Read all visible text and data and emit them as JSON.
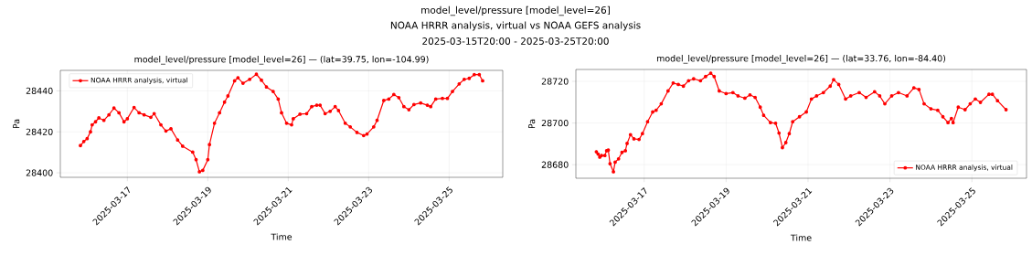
{
  "chart_data": [
    {
      "type": "line",
      "title": "model_level/pressure [model_level=26] — (lat=39.75, lon=-104.99)",
      "xlabel": "Time",
      "ylabel": "Pa",
      "annotations": [
        "model_level/pressure [model_level=26]",
        "NOAA HRRR analysis, virtual vs NOAA GEFS analysis",
        "2025-03-15T20:00 - 2025-03-25T20:00"
      ],
      "x": [
        "2025-03-15T20:00",
        "2025-03-15T22:00",
        "2025-03-16T00:00",
        "2025-03-16T02:00",
        "2025-03-16T03:00",
        "2025-03-16T05:00",
        "2025-03-16T07:00",
        "2025-03-16T10:00",
        "2025-03-16T13:00",
        "2025-03-16T16:00",
        "2025-03-16T19:00",
        "2025-03-16T22:00",
        "2025-03-17T00:00",
        "2025-03-17T04:00",
        "2025-03-17T07:00",
        "2025-03-17T10:00",
        "2025-03-17T14:00",
        "2025-03-17T16:00",
        "2025-03-17T20:00",
        "2025-03-17T23:00",
        "2025-03-18T02:00",
        "2025-03-18T06:00",
        "2025-03-18T09:00",
        "2025-03-18T15:00",
        "2025-03-18T17:00",
        "2025-03-18T19:00",
        "2025-03-18T21:00",
        "2025-03-19T00:00",
        "2025-03-19T01:00",
        "2025-03-19T04:00",
        "2025-03-19T07:00",
        "2025-03-19T10:00",
        "2025-03-19T12:00",
        "2025-03-19T16:00",
        "2025-03-19T18:00",
        "2025-03-19T21:00",
        "2025-03-20T01:00",
        "2025-03-20T05:00",
        "2025-03-20T08:00",
        "2025-03-20T11:00",
        "2025-03-20T15:00",
        "2025-03-20T18:00",
        "2025-03-20T20:00",
        "2025-03-20T23:00",
        "2025-03-21T02:00",
        "2025-03-21T03:00",
        "2025-03-21T07:00",
        "2025-03-21T11:00",
        "2025-03-21T14:00",
        "2025-03-21T17:00",
        "2025-03-21T19:00",
        "2025-03-21T22:00",
        "2025-03-22T01:00",
        "2025-03-22T04:00",
        "2025-03-22T06:00",
        "2025-03-22T10:00",
        "2025-03-22T13:00",
        "2025-03-22T17:00",
        "2025-03-22T21:00",
        "2025-03-22T23:00",
        "2025-03-23T03:00",
        "2025-03-23T05:00",
        "2025-03-23T09:00",
        "2025-03-23T12:00",
        "2025-03-23T15:00",
        "2025-03-23T18:00",
        "2025-03-23T21:00",
        "2025-03-24T00:00",
        "2025-03-24T03:00",
        "2025-03-24T07:00",
        "2025-03-24T11:00",
        "2025-03-24T13:00",
        "2025-03-24T16:00",
        "2025-03-24T20:00",
        "2025-03-24T23:00",
        "2025-03-25T02:00",
        "2025-03-25T06:00",
        "2025-03-25T09:00",
        "2025-03-25T12:00",
        "2025-03-25T15:00",
        "2025-03-25T18:00",
        "2025-03-25T20:00"
      ],
      "series": [
        {
          "name": "NOAA HRRR analysis, virtual",
          "color": "#ff0000",
          "values": [
            28413.3,
            28415.3,
            28416.7,
            28420.0,
            28423.4,
            28424.9,
            28426.8,
            28425.6,
            28428.3,
            28431.6,
            28429.3,
            28424.9,
            28426.4,
            28431.9,
            28429.3,
            28428.3,
            28427.1,
            28428.9,
            28423.4,
            28420.4,
            28421.5,
            28416.0,
            28413.0,
            28410.1,
            28406.4,
            28400.5,
            28401.2,
            28406.4,
            28413.8,
            28424.2,
            28429.3,
            28434.5,
            28437.5,
            28444.9,
            28446.4,
            28443.7,
            28445.6,
            28448.1,
            28445.2,
            28441.9,
            28439.7,
            28436.0,
            28429.3,
            28424.2,
            28423.4,
            28426.4,
            28428.6,
            28428.9,
            28432.3,
            28433.0,
            28433.0,
            28428.9,
            28430.0,
            28432.3,
            28430.4,
            28424.2,
            28422.4,
            28419.7,
            28418.2,
            28418.9,
            28422.4,
            28425.6,
            28435.3,
            28436.0,
            28438.2,
            28436.7,
            28432.3,
            28430.8,
            28433.3,
            28434.1,
            28433.0,
            28432.3,
            28436.0,
            28436.3,
            28436.3,
            28439.7,
            28443.4,
            28445.6,
            28446.1,
            28447.9,
            28447.9,
            28444.9
          ]
        }
      ],
      "xlim": [
        "2025-03-15T08:00",
        "2025-03-26T08:00"
      ],
      "xticks": [
        "2025-03-17",
        "2025-03-19",
        "2025-03-21",
        "2025-03-23",
        "2025-03-25"
      ],
      "ylim": [
        28397.8,
        28450
      ],
      "yticks": [
        28400,
        28420,
        28440
      ],
      "grid": true,
      "legend": "top left",
      "marker": "circle",
      "line_style": "solid"
    },
    {
      "type": "line",
      "title": "model_level/pressure [model_level=26] — (lat=33.76, lon=-84.40)",
      "xlabel": "Time",
      "ylabel": "Pa",
      "x": [
        "2025-03-15T20:00",
        "2025-03-15T21:00",
        "2025-03-15T22:00",
        "2025-03-15T23:00",
        "2025-03-16T01:00",
        "2025-03-16T02:00",
        "2025-03-16T03:00",
        "2025-03-16T04:00",
        "2025-03-16T06:00",
        "2025-03-16T07:00",
        "2025-03-16T09:00",
        "2025-03-16T11:00",
        "2025-03-16T13:00",
        "2025-03-16T14:00",
        "2025-03-16T16:00",
        "2025-03-16T18:00",
        "2025-03-16T21:00",
        "2025-03-16T23:00",
        "2025-03-17T02:00",
        "2025-03-17T05:00",
        "2025-03-17T07:00",
        "2025-03-17T10:00",
        "2025-03-17T14:00",
        "2025-03-17T17:00",
        "2025-03-17T20:00",
        "2025-03-17T23:00",
        "2025-03-18T02:00",
        "2025-03-18T05:00",
        "2025-03-18T09:00",
        "2025-03-18T12:00",
        "2025-03-18T15:00",
        "2025-03-18T17:00",
        "2025-03-18T20:00",
        "2025-03-19T00:00",
        "2025-03-19T04:00",
        "2025-03-19T07:00",
        "2025-03-19T11:00",
        "2025-03-19T14:00",
        "2025-03-19T17:00",
        "2025-03-19T20:00",
        "2025-03-19T22:00",
        "2025-03-20T02:00",
        "2025-03-20T05:00",
        "2025-03-20T07:00",
        "2025-03-20T09:00",
        "2025-03-20T11:00",
        "2025-03-20T13:00",
        "2025-03-20T15:00",
        "2025-03-20T19:00",
        "2025-03-20T23:00",
        "2025-03-21T02:00",
        "2025-03-21T05:00",
        "2025-03-21T09:00",
        "2025-03-21T13:00",
        "2025-03-21T15:00",
        "2025-03-21T18:00",
        "2025-03-21T22:00",
        "2025-03-22T01:00",
        "2025-03-22T06:00",
        "2025-03-22T10:00",
        "2025-03-22T15:00",
        "2025-03-22T18:00",
        "2025-03-22T21:00",
        "2025-03-23T01:00",
        "2025-03-23T05:00",
        "2025-03-23T10:00",
        "2025-03-23T14:00",
        "2025-03-23T17:00",
        "2025-03-23T20:00",
        "2025-03-24T00:00",
        "2025-03-24T04:00",
        "2025-03-24T07:00",
        "2025-03-24T10:00",
        "2025-03-24T12:00",
        "2025-03-24T13:00",
        "2025-03-24T16:00",
        "2025-03-24T20:00",
        "2025-03-24T23:00",
        "2025-03-25T02:00",
        "2025-03-25T05:00",
        "2025-03-25T10:00",
        "2025-03-25T12:00",
        "2025-03-25T15:00",
        "2025-03-25T20:00"
      ],
      "series": [
        {
          "name": "NOAA HRRR analysis, virtual",
          "color": "#ff0000",
          "values": [
            28686.2,
            28685.1,
            28683.6,
            28684.4,
            28684.4,
            28686.7,
            28687.0,
            28680.5,
            28676.6,
            28681.2,
            28682.8,
            28685.9,
            28686.7,
            28690.2,
            28694.4,
            28692.4,
            28692.1,
            28694.9,
            28700.6,
            28705.3,
            28706.1,
            28709.2,
            28715.4,
            28719.2,
            28718.5,
            28717.7,
            28720.3,
            28721.2,
            28720.3,
            28722.3,
            28723.9,
            28722.3,
            28715.4,
            28714.1,
            28714.6,
            28713.0,
            28711.9,
            28713.5,
            28712.3,
            28707.6,
            28703.7,
            28700.2,
            28699.9,
            28695.2,
            28688.2,
            28690.6,
            28694.9,
            28700.6,
            28703.0,
            28705.3,
            28711.5,
            28713.0,
            28714.6,
            28717.7,
            28720.8,
            28718.5,
            28711.5,
            28713.0,
            28714.6,
            28712.3,
            28715.0,
            28713.0,
            28709.2,
            28713.0,
            28714.6,
            28713.0,
            28716.9,
            28716.1,
            28709.2,
            28706.8,
            28706.1,
            28703.0,
            28700.2,
            28702.2,
            28700.2,
            28707.6,
            28706.4,
            28709.2,
            28711.5,
            28709.9,
            28713.8,
            28713.8,
            28710.7,
            28706.4
          ]
        }
      ],
      "xlim": [
        "2025-03-15T08:00",
        "2025-03-26T08:00"
      ],
      "xticks": [
        "2025-03-17",
        "2025-03-19",
        "2025-03-21",
        "2025-03-23",
        "2025-03-25"
      ],
      "ylim": [
        28673.5,
        28725.7
      ],
      "yticks": [
        28680,
        28700,
        28720
      ],
      "grid": true,
      "legend": "bottom right",
      "marker": "circle",
      "line_style": "solid"
    }
  ]
}
